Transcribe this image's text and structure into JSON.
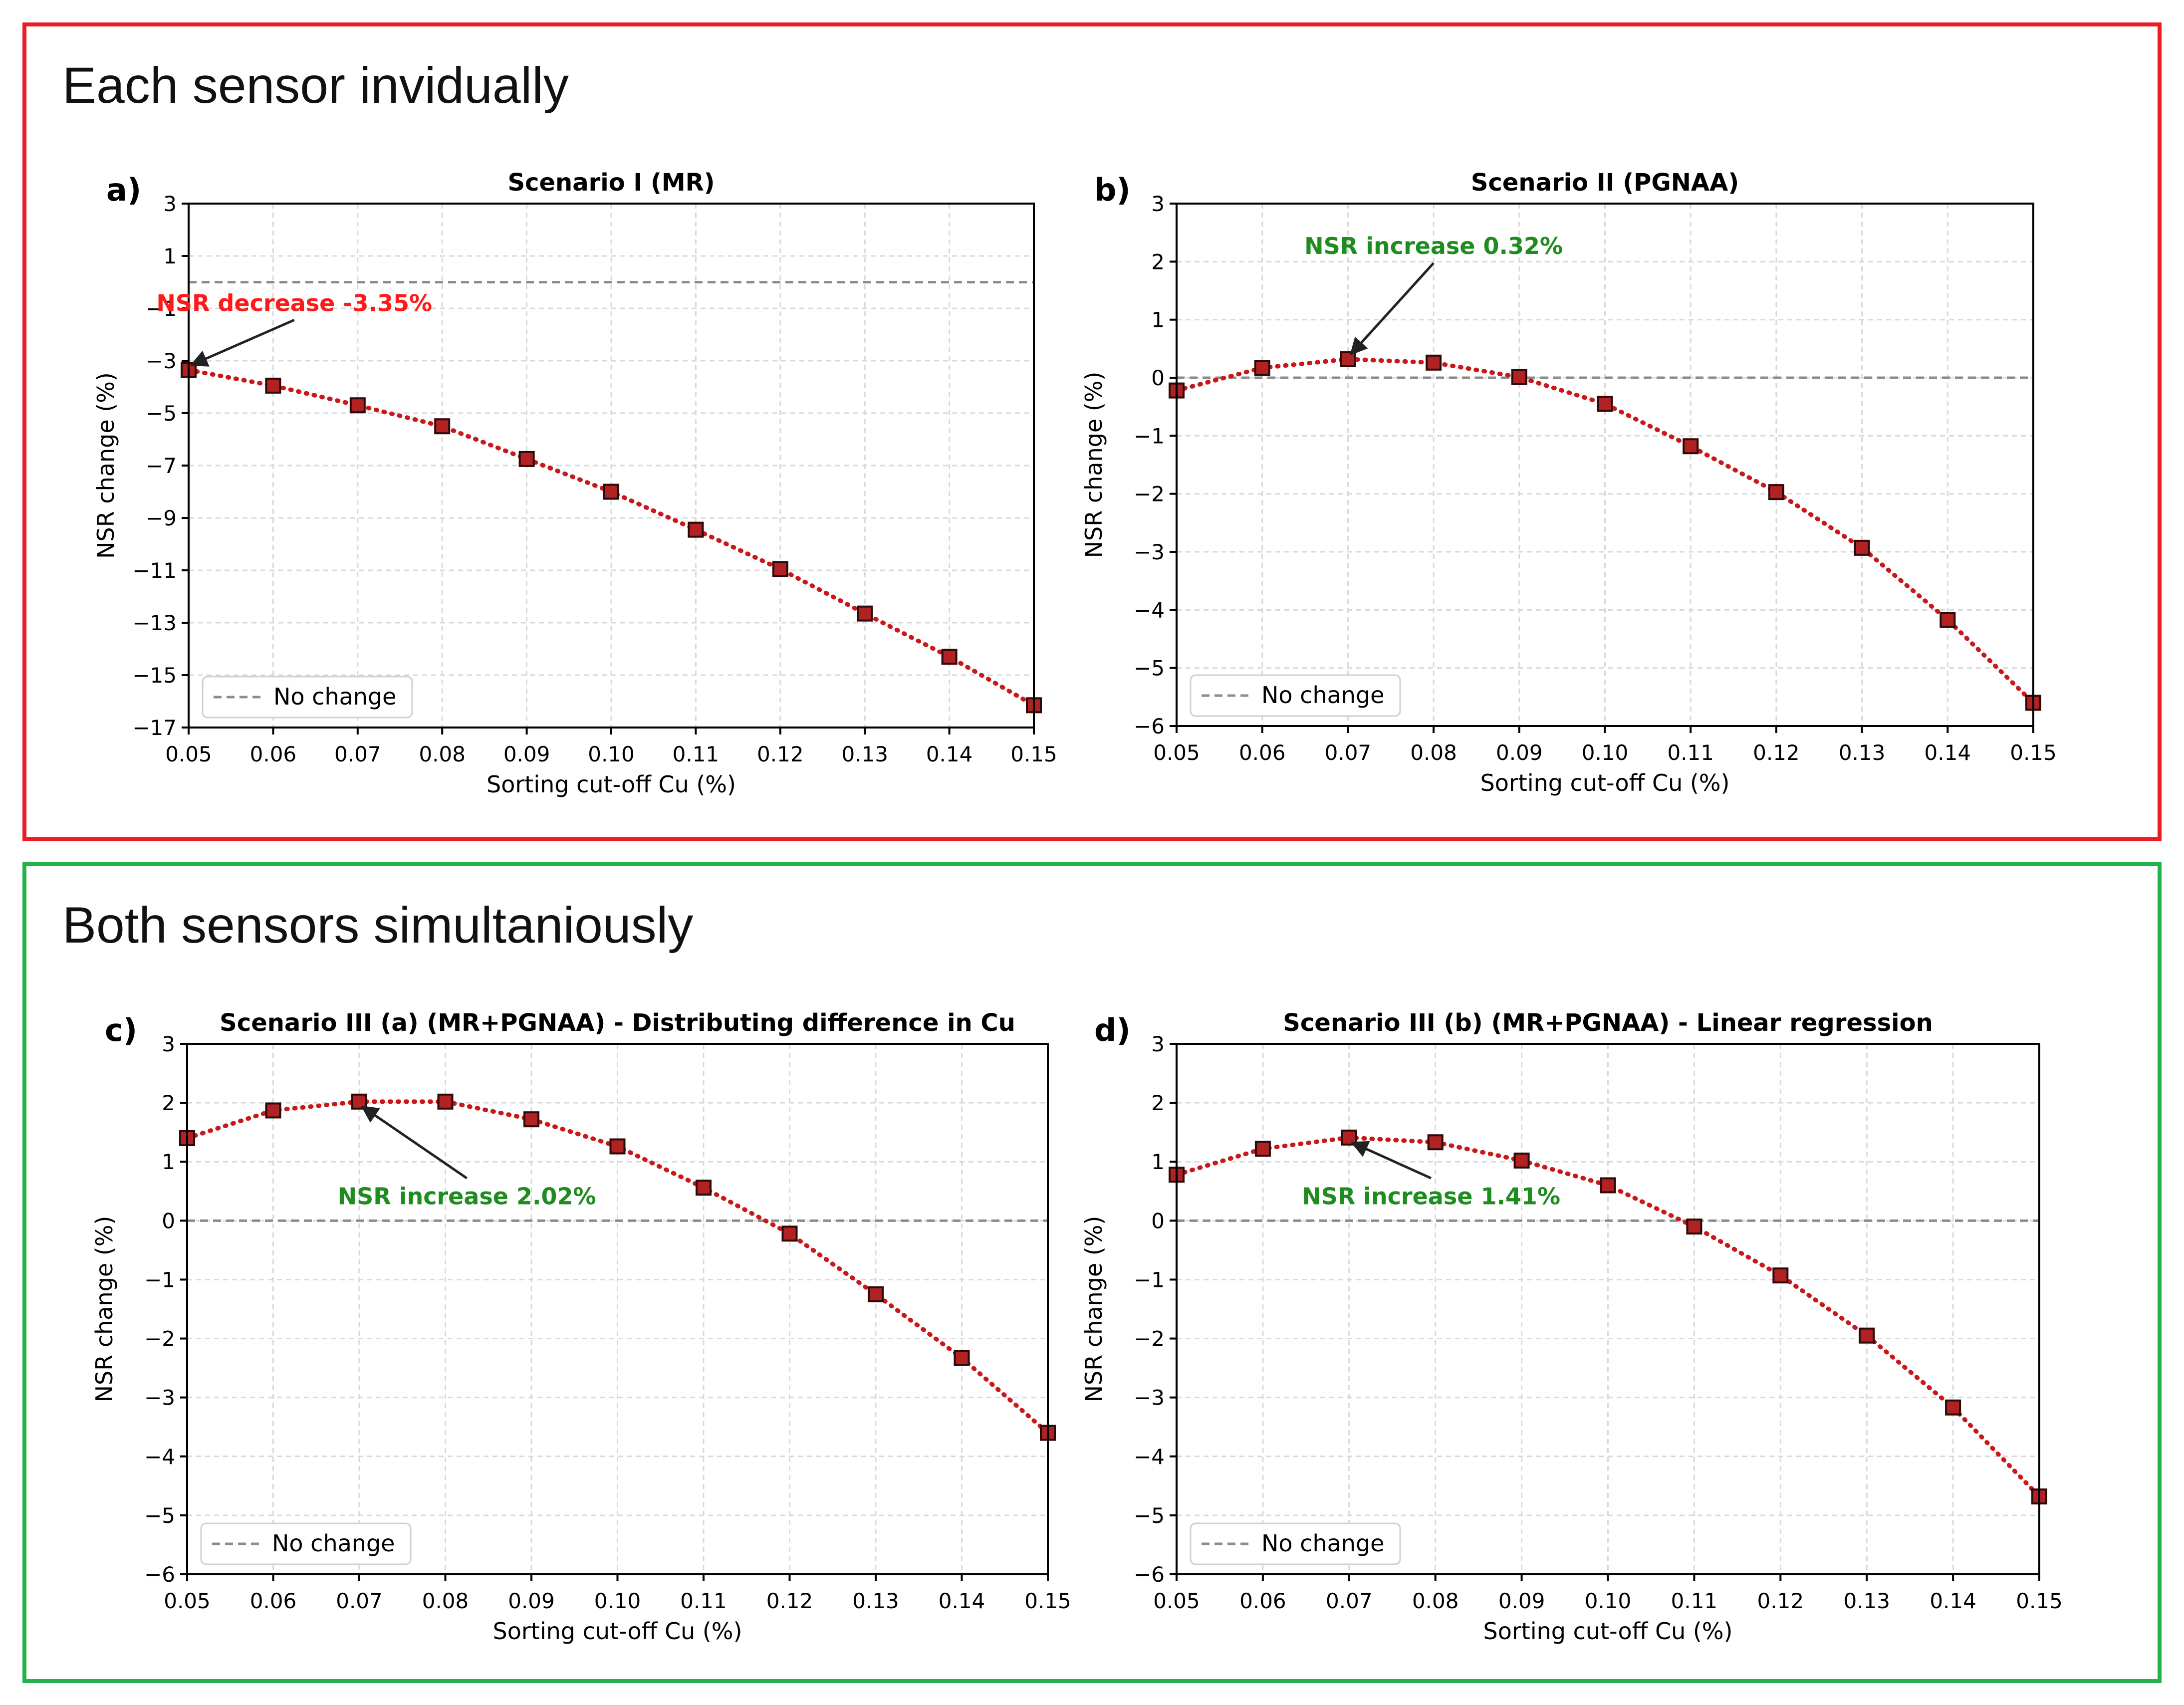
{
  "sections": [
    {
      "title": "Each sensor invidually",
      "color": "#ed1c24"
    },
    {
      "title": "Both sensors simultaniously",
      "color": "#22b14c"
    }
  ],
  "colors": {
    "series": "#c9181a",
    "marker_face": "#b22222",
    "marker_edge": "#2b0a0a",
    "reference": "#8c8c8c",
    "increase_label": "#1e8c1e",
    "decrease_label": "#ff1a1a"
  },
  "legend_label": "No change",
  "chart_data": [
    {
      "panel": "a)",
      "type": "line",
      "title": "Scenario I (MR)",
      "xlabel": "Sorting cut-off Cu (%)",
      "ylabel": "NSR change (%)",
      "x": [
        0.05,
        0.06,
        0.07,
        0.08,
        0.09,
        0.1,
        0.11,
        0.12,
        0.13,
        0.14,
        0.15
      ],
      "x_ticks": [
        "0.05",
        "0.06",
        "0.07",
        "0.08",
        "0.09",
        "0.10",
        "0.11",
        "0.12",
        "0.13",
        "0.14",
        "0.15"
      ],
      "values": [
        -3.35,
        -3.95,
        -4.7,
        -5.5,
        -6.75,
        -8.0,
        -9.45,
        -10.95,
        -12.65,
        -14.3,
        -16.15
      ],
      "xlim": [
        0.05,
        0.15
      ],
      "ylim": [
        -17,
        3
      ],
      "y_ticks": [
        3,
        1,
        -1,
        -3,
        -5,
        -7,
        -9,
        -11,
        -13,
        -15,
        -17
      ],
      "y_tick_labels": [
        "3",
        "1",
        "−1",
        "−3",
        "−5",
        "−7",
        "−9",
        "−11",
        "−13",
        "−15",
        "−17"
      ],
      "reference_line": 0,
      "grid": true,
      "legend": "bottom-left",
      "annotation": {
        "text": "NSR decrease -3.35%",
        "x": 0.05,
        "y": -3.35,
        "text_x": 0.0625,
        "text_y": -1.1,
        "kind": "decrease"
      }
    },
    {
      "panel": "b)",
      "type": "line",
      "title": "Scenario II (PGNAA)",
      "xlabel": "Sorting cut-off Cu (%)",
      "ylabel": "NSR change (%)",
      "x": [
        0.05,
        0.06,
        0.07,
        0.08,
        0.09,
        0.1,
        0.11,
        0.12,
        0.13,
        0.14,
        0.15
      ],
      "x_ticks": [
        "0.05",
        "0.06",
        "0.07",
        "0.08",
        "0.09",
        "0.10",
        "0.11",
        "0.12",
        "0.13",
        "0.14",
        "0.15"
      ],
      "values": [
        -0.22,
        0.17,
        0.32,
        0.26,
        0.01,
        -0.45,
        -1.18,
        -1.97,
        -2.93,
        -4.17,
        -5.6
      ],
      "xlim": [
        0.05,
        0.15
      ],
      "ylim": [
        -6,
        3
      ],
      "y_ticks": [
        3,
        2,
        1,
        0,
        -1,
        -2,
        -3,
        -4,
        -5,
        -6
      ],
      "y_tick_labels": [
        "3",
        "2",
        "1",
        "0",
        "−1",
        "−2",
        "−3",
        "−4",
        "−5",
        "−6"
      ],
      "reference_line": 0,
      "grid": true,
      "legend": "bottom-left",
      "annotation": {
        "text": "NSR increase 0.32%",
        "x": 0.07,
        "y": 0.32,
        "text_x": 0.08,
        "text_y": 2.13,
        "kind": "increase"
      }
    },
    {
      "panel": "c)",
      "type": "line",
      "title": "Scenario III (a) (MR+PGNAA) - Distributing difference in Cu",
      "xlabel": "Sorting cut-off Cu (%)",
      "ylabel": "NSR change (%)",
      "x": [
        0.05,
        0.06,
        0.07,
        0.08,
        0.09,
        0.1,
        0.11,
        0.12,
        0.13,
        0.14,
        0.15
      ],
      "x_ticks": [
        "0.05",
        "0.06",
        "0.07",
        "0.08",
        "0.09",
        "0.10",
        "0.11",
        "0.12",
        "0.13",
        "0.14",
        "0.15"
      ],
      "values": [
        1.4,
        1.87,
        2.02,
        2.02,
        1.72,
        1.26,
        0.56,
        -0.22,
        -1.25,
        -2.33,
        -3.6
      ],
      "xlim": [
        0.05,
        0.15
      ],
      "ylim": [
        -6,
        3
      ],
      "y_ticks": [
        3,
        2,
        1,
        0,
        -1,
        -2,
        -3,
        -4,
        -5,
        -6
      ],
      "y_tick_labels": [
        "3",
        "2",
        "1",
        "0",
        "−1",
        "−2",
        "−3",
        "−4",
        "−5",
        "−6"
      ],
      "reference_line": 0,
      "grid": true,
      "legend": "bottom-left",
      "annotation": {
        "text": "NSR increase 2.02%",
        "x": 0.07,
        "y": 2.02,
        "text_x": 0.0825,
        "text_y": 0.28,
        "kind": "increase"
      }
    },
    {
      "panel": "d)",
      "type": "line",
      "title": "Scenario III (b) (MR+PGNAA) - Linear regression",
      "xlabel": "Sorting cut-off Cu (%)",
      "ylabel": "NSR change (%)",
      "x": [
        0.05,
        0.06,
        0.07,
        0.08,
        0.09,
        0.1,
        0.11,
        0.12,
        0.13,
        0.14,
        0.15
      ],
      "x_ticks": [
        "0.05",
        "0.06",
        "0.07",
        "0.08",
        "0.09",
        "0.10",
        "0.11",
        "0.12",
        "0.13",
        "0.14",
        "0.15"
      ],
      "values": [
        0.78,
        1.22,
        1.41,
        1.33,
        1.02,
        0.6,
        -0.1,
        -0.93,
        -1.95,
        -3.17,
        -4.68
      ],
      "xlim": [
        0.05,
        0.15
      ],
      "ylim": [
        -6,
        3
      ],
      "y_ticks": [
        3,
        2,
        1,
        0,
        -1,
        -2,
        -3,
        -4,
        -5,
        -6
      ],
      "y_tick_labels": [
        "3",
        "2",
        "1",
        "0",
        "−1",
        "−2",
        "−3",
        "−4",
        "−5",
        "−6"
      ],
      "reference_line": 0,
      "grid": true,
      "legend": "bottom-left",
      "annotation": {
        "text": "NSR increase 1.41%",
        "x": 0.07,
        "y": 1.41,
        "text_x": 0.0795,
        "text_y": 0.28,
        "kind": "increase"
      }
    }
  ]
}
